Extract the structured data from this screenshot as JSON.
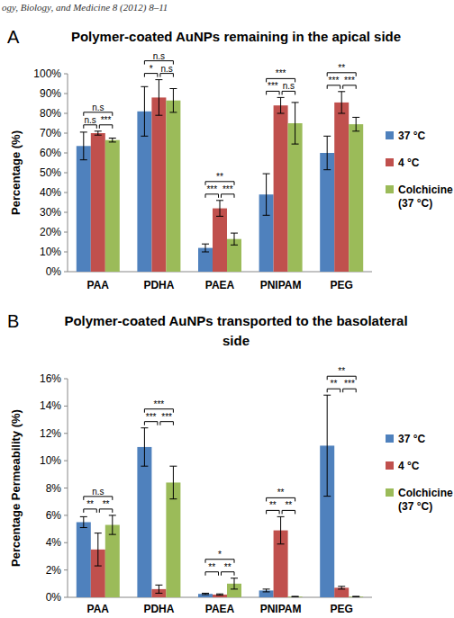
{
  "header": "ogy, Biology, and Medicine 8 (2012) 8–11",
  "chart_data": [
    {
      "type": "bar",
      "panel_label": "A",
      "title": "Polymer-coated AuNPs remaining in the apical side",
      "y_label": "Percentage (%)",
      "categories": [
        "PAA",
        "PDHA",
        "PAEA",
        "PNIPAM",
        "PEG"
      ],
      "series": [
        {
          "name": "37 °C",
          "color": "#4f81bd",
          "values": [
            63.5,
            81,
            12,
            39,
            60
          ],
          "errors": [
            7,
            12.5,
            2,
            10.5,
            8.5
          ]
        },
        {
          "name": "4 °C",
          "color": "#c0504d",
          "values": [
            70,
            88,
            32,
            84,
            85.5
          ],
          "errors": [
            1,
            9,
            4,
            4,
            5.5
          ]
        },
        {
          "name": "Colchicine\n(37 °C)",
          "color": "#9bbb59",
          "values": [
            66.5,
            86.5,
            16.5,
            75,
            74.5
          ],
          "errors": [
            1,
            6,
            3,
            10.5,
            3.5
          ]
        }
      ],
      "ylim": [
        0,
        100
      ],
      "yticks": [
        {
          "value": 0,
          "label": "0%"
        },
        {
          "value": 10,
          "label": "10%"
        },
        {
          "value": 20,
          "label": "20%"
        },
        {
          "value": 30,
          "label": "30%"
        },
        {
          "value": 40,
          "label": "40%"
        },
        {
          "value": 50,
          "label": "50%"
        },
        {
          "value": 60,
          "label": "60%"
        },
        {
          "value": 70,
          "label": "70%"
        },
        {
          "value": 80,
          "label": "80%"
        },
        {
          "value": 90,
          "label": "90%"
        },
        {
          "value": 100,
          "label": "100%"
        }
      ],
      "grid": false,
      "legend": "right",
      "significance": [
        {
          "category": 0,
          "pair": [
            0,
            2
          ],
          "label": "n.s"
        },
        {
          "category": 0,
          "pair": [
            0,
            1
          ],
          "label": "n.s"
        },
        {
          "category": 0,
          "pair": [
            1,
            2
          ],
          "label": "***"
        },
        {
          "category": 1,
          "pair": [
            0,
            2
          ],
          "label": "n.s"
        },
        {
          "category": 1,
          "pair": [
            0,
            1
          ],
          "label": "*"
        },
        {
          "category": 1,
          "pair": [
            1,
            2
          ],
          "label": "n.s"
        },
        {
          "category": 2,
          "pair": [
            0,
            2
          ],
          "label": "**"
        },
        {
          "category": 2,
          "pair": [
            0,
            1
          ],
          "label": "***"
        },
        {
          "category": 2,
          "pair": [
            1,
            2
          ],
          "label": "***"
        },
        {
          "category": 3,
          "pair": [
            0,
            2
          ],
          "label": "***"
        },
        {
          "category": 3,
          "pair": [
            0,
            1
          ],
          "label": "***"
        },
        {
          "category": 3,
          "pair": [
            1,
            2
          ],
          "label": "n.s"
        },
        {
          "category": 4,
          "pair": [
            0,
            2
          ],
          "label": "**"
        },
        {
          "category": 4,
          "pair": [
            0,
            1
          ],
          "label": "***"
        },
        {
          "category": 4,
          "pair": [
            1,
            2
          ],
          "label": "***"
        }
      ]
    },
    {
      "type": "bar",
      "panel_label": "B",
      "title": "Polymer-coated AuNPs transported to the basolateral\nside",
      "y_label": "Percentage Permeability (%)",
      "categories": [
        "PAA",
        "PDHA",
        "PAEA",
        "PNIPAM",
        "PEG"
      ],
      "series": [
        {
          "name": "37 °C",
          "color": "#4f81bd",
          "values": [
            5.5,
            11.0,
            0.25,
            0.5,
            11.1
          ],
          "errors": [
            0.4,
            1.4,
            0.05,
            0.1,
            3.7
          ]
        },
        {
          "name": "4 °C",
          "color": "#c0504d",
          "values": [
            3.5,
            0.6,
            0.2,
            4.9,
            0.7
          ],
          "errors": [
            1.2,
            0.3,
            0.05,
            1.0,
            0.1
          ]
        },
        {
          "name": "Colchicine\n(37 °C)",
          "color": "#9bbb59",
          "values": [
            5.3,
            8.4,
            1.0,
            0.05,
            0.05
          ],
          "errors": [
            0.7,
            1.2,
            0.4,
            0.02,
            0.02
          ]
        }
      ],
      "ylim": [
        0,
        16
      ],
      "yticks": [
        {
          "value": 0,
          "label": "0%"
        },
        {
          "value": 2,
          "label": "2%"
        },
        {
          "value": 4,
          "label": "4%"
        },
        {
          "value": 6,
          "label": "6%"
        },
        {
          "value": 8,
          "label": "8%"
        },
        {
          "value": 10,
          "label": "10%"
        },
        {
          "value": 12,
          "label": "12%"
        },
        {
          "value": 14,
          "label": "14%"
        },
        {
          "value": 16,
          "label": "16%"
        }
      ],
      "grid": false,
      "legend": "right",
      "significance": [
        {
          "category": 0,
          "pair": [
            0,
            2
          ],
          "label": "n.s"
        },
        {
          "category": 0,
          "pair": [
            0,
            1
          ],
          "label": "**"
        },
        {
          "category": 0,
          "pair": [
            1,
            2
          ],
          "label": "**"
        },
        {
          "category": 1,
          "pair": [
            0,
            2
          ],
          "label": "***"
        },
        {
          "category": 1,
          "pair": [
            0,
            1
          ],
          "label": "***"
        },
        {
          "category": 1,
          "pair": [
            1,
            2
          ],
          "label": "***"
        },
        {
          "category": 2,
          "pair": [
            0,
            2
          ],
          "label": "*"
        },
        {
          "category": 2,
          "pair": [
            0,
            1
          ],
          "label": "**"
        },
        {
          "category": 2,
          "pair": [
            1,
            2
          ],
          "label": "**"
        },
        {
          "category": 3,
          "pair": [
            0,
            2
          ],
          "label": "**"
        },
        {
          "category": 3,
          "pair": [
            0,
            1
          ],
          "label": "**"
        },
        {
          "category": 3,
          "pair": [
            1,
            2
          ],
          "label": "**"
        },
        {
          "category": 4,
          "pair": [
            0,
            2
          ],
          "label": "**"
        },
        {
          "category": 4,
          "pair": [
            0,
            1
          ],
          "label": "**"
        },
        {
          "category": 4,
          "pair": [
            1,
            2
          ],
          "label": "***"
        }
      ]
    }
  ]
}
